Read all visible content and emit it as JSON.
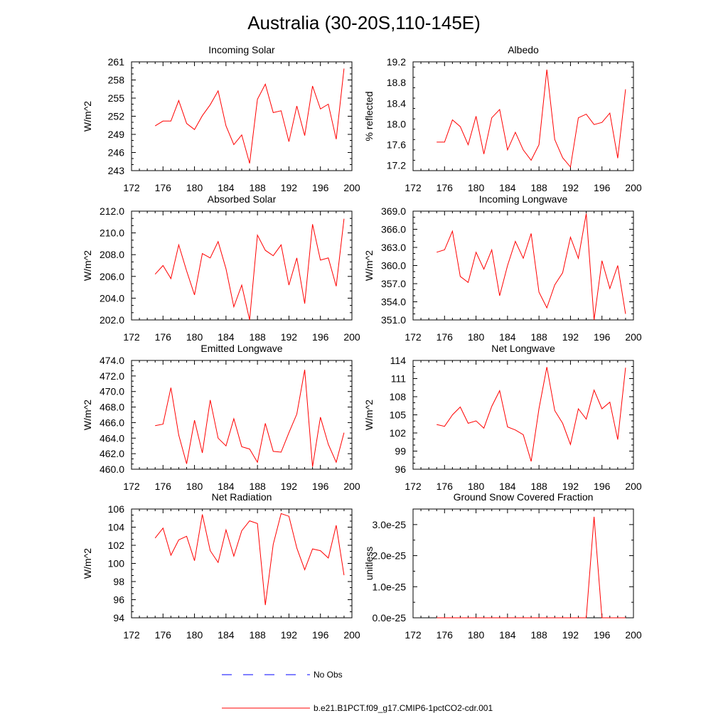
{
  "figure": {
    "title": "Australia (30-20S,110-145E)"
  },
  "legend": [
    {
      "label": "No Obs",
      "color": "#0000ff",
      "dashed": true
    },
    {
      "label": "b.e21.B1PCT.f09_g17.CMIP6-1pctCO2-cdr.001",
      "color": "#ff0000",
      "dashed": false
    }
  ],
  "chart_data": [
    {
      "type": "line",
      "title": "Incoming Solar",
      "ylabel": "W/m^2",
      "xlim": [
        172,
        200
      ],
      "xticks": [
        172,
        176,
        180,
        184,
        188,
        192,
        196,
        200
      ],
      "ylim": [
        243,
        261
      ],
      "yticks": [
        243,
        246,
        249,
        252,
        255,
        258,
        261
      ],
      "ytick_labels": [
        "243",
        "246",
        "249",
        "252",
        "255",
        "258",
        "261"
      ],
      "series": [
        {
          "color": "#ff0000",
          "x": [
            175,
            176,
            177,
            178,
            179,
            180,
            181,
            182,
            183,
            184,
            185,
            186,
            187,
            188,
            189,
            190,
            191,
            192,
            193,
            194,
            195,
            196,
            197,
            198,
            199
          ],
          "y": [
            250.4,
            251.2,
            251.2,
            254.6,
            250.8,
            249.8,
            252.1,
            253.9,
            256.2,
            250.4,
            247.3,
            248.9,
            244.2,
            254.8,
            257.3,
            252.6,
            252.9,
            247.8,
            253.7,
            248.8,
            257.0,
            253.2,
            254.0,
            248.2,
            259.9
          ]
        }
      ]
    },
    {
      "type": "line",
      "title": "Albedo",
      "ylabel": "% reflected",
      "xlim": [
        172,
        200
      ],
      "xticks": [
        172,
        176,
        180,
        184,
        188,
        192,
        196,
        200
      ],
      "ylim": [
        17.1,
        19.2
      ],
      "yticks": [
        17.2,
        17.6,
        18.0,
        18.4,
        18.8,
        19.2
      ],
      "ytick_labels": [
        "17.2",
        "17.6",
        "18.0",
        "18.4",
        "18.8",
        "19.2"
      ],
      "series": [
        {
          "color": "#ff0000",
          "x": [
            175,
            176,
            177,
            178,
            179,
            180,
            181,
            182,
            183,
            184,
            185,
            186,
            187,
            188,
            189,
            190,
            191,
            192,
            193,
            194,
            195,
            196,
            197,
            198,
            199
          ],
          "y": [
            17.65,
            17.65,
            18.08,
            17.95,
            17.6,
            18.15,
            17.42,
            18.12,
            18.28,
            17.5,
            17.84,
            17.5,
            17.3,
            17.6,
            19.05,
            17.7,
            17.35,
            17.17,
            18.12,
            18.19,
            17.99,
            18.03,
            18.21,
            17.34,
            18.67
          ]
        }
      ]
    },
    {
      "type": "line",
      "title": "Absorbed Solar",
      "ylabel": "W/m^2",
      "xlim": [
        172,
        200
      ],
      "xticks": [
        172,
        176,
        180,
        184,
        188,
        192,
        196,
        200
      ],
      "ylim": [
        202,
        212
      ],
      "yticks": [
        202,
        204,
        206,
        208,
        210,
        212
      ],
      "ytick_labels": [
        "202.0",
        "204.0",
        "206.0",
        "208.0",
        "210.0",
        "212.0"
      ],
      "series": [
        {
          "color": "#ff0000",
          "x": [
            175,
            176,
            177,
            178,
            179,
            180,
            181,
            182,
            183,
            184,
            185,
            186,
            187,
            188,
            189,
            190,
            191,
            192,
            193,
            194,
            195,
            196,
            197,
            198,
            199
          ],
          "y": [
            206.2,
            207.0,
            205.8,
            208.9,
            206.5,
            204.3,
            208.1,
            207.7,
            209.2,
            206.7,
            203.2,
            205.2,
            202.0,
            209.8,
            208.4,
            207.9,
            208.9,
            205.2,
            207.7,
            203.5,
            210.8,
            207.5,
            207.7,
            205.1,
            211.3
          ]
        }
      ]
    },
    {
      "type": "line",
      "title": "Incoming Longwave",
      "ylabel": "W/m^2",
      "xlim": [
        172,
        200
      ],
      "xticks": [
        172,
        176,
        180,
        184,
        188,
        192,
        196,
        200
      ],
      "ylim": [
        351,
        369
      ],
      "yticks": [
        351,
        354,
        357,
        360,
        363,
        366,
        369
      ],
      "ytick_labels": [
        "351.0",
        "354.0",
        "357.0",
        "360.0",
        "363.0",
        "366.0",
        "369.0"
      ],
      "series": [
        {
          "color": "#ff0000",
          "x": [
            175,
            176,
            177,
            178,
            179,
            180,
            181,
            182,
            183,
            184,
            185,
            186,
            187,
            188,
            189,
            190,
            191,
            192,
            193,
            194,
            195,
            196,
            197,
            198,
            199
          ],
          "y": [
            362.2,
            362.6,
            365.7,
            358.2,
            357.2,
            362.2,
            359.4,
            362.6,
            355.0,
            360.0,
            364.0,
            361.2,
            365.3,
            355.6,
            353.0,
            356.8,
            358.8,
            364.7,
            361.2,
            368.6,
            351.0,
            360.8,
            356.2,
            360.0,
            352.0
          ]
        }
      ]
    },
    {
      "type": "line",
      "title": "Emitted Longwave",
      "ylabel": "W/m^2",
      "xlim": [
        172,
        200
      ],
      "xticks": [
        172,
        176,
        180,
        184,
        188,
        192,
        196,
        200
      ],
      "ylim": [
        460,
        474
      ],
      "yticks": [
        460,
        462,
        464,
        466,
        468,
        470,
        472,
        474
      ],
      "ytick_labels": [
        "460.0",
        "462.0",
        "464.0",
        "466.0",
        "468.0",
        "470.0",
        "472.0",
        "474.0"
      ],
      "series": [
        {
          "color": "#ff0000",
          "x": [
            175,
            176,
            177,
            178,
            179,
            180,
            181,
            182,
            183,
            184,
            185,
            186,
            187,
            188,
            189,
            190,
            191,
            192,
            193,
            194,
            195,
            196,
            197,
            198,
            199
          ],
          "y": [
            465.6,
            465.8,
            470.5,
            464.4,
            460.7,
            466.3,
            462.1,
            468.9,
            464.0,
            463.0,
            466.5,
            462.9,
            462.6,
            460.9,
            465.9,
            462.3,
            462.2,
            464.7,
            467.1,
            472.8,
            460.3,
            466.7,
            463.2,
            460.9,
            464.7
          ]
        }
      ]
    },
    {
      "type": "line",
      "title": "Net Longwave",
      "ylabel": "W/m^2",
      "xlim": [
        172,
        200
      ],
      "xticks": [
        172,
        176,
        180,
        184,
        188,
        192,
        196,
        200
      ],
      "ylim": [
        96,
        114
      ],
      "yticks": [
        96,
        99,
        102,
        105,
        108,
        111,
        114
      ],
      "ytick_labels": [
        "96",
        "99",
        "102",
        "105",
        "108",
        "111",
        "114"
      ],
      "series": [
        {
          "color": "#ff0000",
          "x": [
            175,
            176,
            177,
            178,
            179,
            180,
            181,
            182,
            183,
            184,
            185,
            186,
            187,
            188,
            189,
            190,
            191,
            192,
            193,
            194,
            195,
            196,
            197,
            198,
            199
          ],
          "y": [
            103.4,
            103.1,
            105.0,
            106.3,
            103.6,
            104.0,
            102.8,
            106.4,
            109.0,
            103.0,
            102.5,
            101.7,
            97.3,
            106.0,
            112.9,
            105.7,
            103.6,
            100.1,
            106.0,
            104.3,
            109.1,
            106.0,
            107.1,
            100.9,
            112.8
          ]
        }
      ]
    },
    {
      "type": "line",
      "title": "Net Radiation",
      "ylabel": "W/m^2",
      "xlim": [
        172,
        200
      ],
      "xticks": [
        172,
        176,
        180,
        184,
        188,
        192,
        196,
        200
      ],
      "ylim": [
        94,
        106
      ],
      "yticks": [
        94,
        96,
        98,
        100,
        102,
        104,
        106
      ],
      "ytick_labels": [
        "94",
        "96",
        "98",
        "100",
        "102",
        "104",
        "106"
      ],
      "series": [
        {
          "color": "#ff0000",
          "x": [
            175,
            176,
            177,
            178,
            179,
            180,
            181,
            182,
            183,
            184,
            185,
            186,
            187,
            188,
            189,
            190,
            191,
            192,
            193,
            194,
            195,
            196,
            197,
            198,
            199
          ],
          "y": [
            102.8,
            103.9,
            100.9,
            102.6,
            103.0,
            100.3,
            105.4,
            101.4,
            100.1,
            103.7,
            100.8,
            103.6,
            104.7,
            104.4,
            95.4,
            102.1,
            105.5,
            105.2,
            101.7,
            99.3,
            101.6,
            101.4,
            100.6,
            104.2,
            98.7
          ]
        }
      ]
    },
    {
      "type": "line",
      "title": "Ground Snow Covered Fraction",
      "ylabel": "unitless",
      "xlim": [
        172,
        200
      ],
      "xticks": [
        172,
        176,
        180,
        184,
        188,
        192,
        196,
        200
      ],
      "ylim": [
        0,
        3.5
      ],
      "yticks": [
        0,
        1,
        2,
        3
      ],
      "ytick_labels": [
        "0.0e-25",
        "1.0e-25",
        "2.0e-25",
        "3.0e-25"
      ],
      "series": [
        {
          "color": "#ff0000",
          "x": [
            175,
            176,
            177,
            178,
            179,
            180,
            181,
            182,
            183,
            184,
            185,
            186,
            187,
            188,
            189,
            190,
            191,
            192,
            193,
            194,
            195,
            196,
            197,
            198,
            199
          ],
          "y": [
            0,
            0,
            0,
            0,
            0,
            0,
            0,
            0,
            0,
            0,
            0,
            0,
            0,
            0,
            0,
            0,
            0,
            0,
            0,
            0,
            3.25,
            0,
            0,
            0,
            0
          ]
        }
      ]
    }
  ]
}
